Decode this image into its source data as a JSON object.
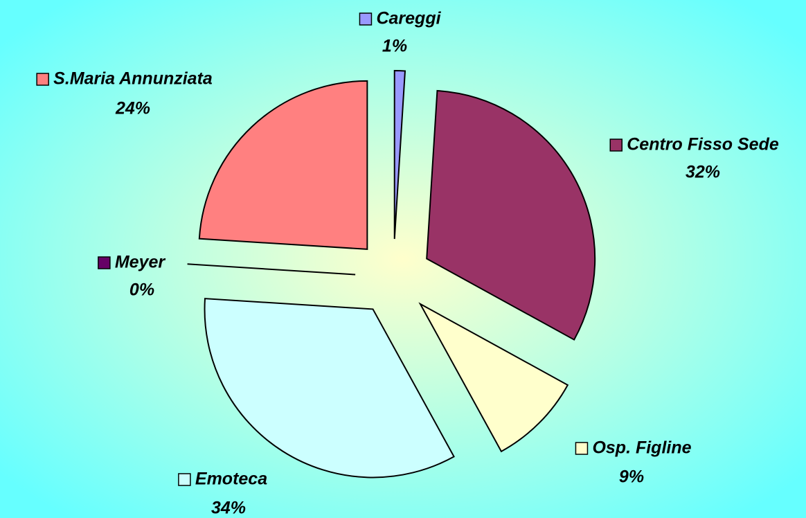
{
  "chart_data": {
    "type": "pie",
    "categories": [
      "Careggi",
      "Centro Fisso Sede",
      "Osp. Figline",
      "Emoteca",
      "Meyer",
      "S.Maria Annunziata"
    ],
    "values": [
      1,
      32,
      9,
      34,
      0,
      24
    ],
    "value_labels": [
      "1%",
      "32%",
      "9%",
      "34%",
      "0%",
      "24%"
    ],
    "colors": [
      "#9999ff",
      "#993366",
      "#ffffcc",
      "#ccffff",
      "#660066",
      "#ff8080"
    ]
  }
}
